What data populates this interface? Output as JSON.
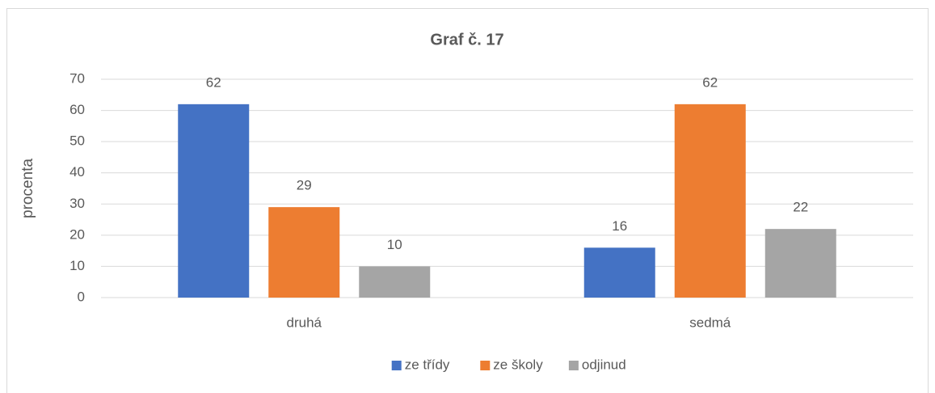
{
  "chart_data": {
    "type": "bar",
    "title": "Graf č. 17",
    "y_label": "procenta",
    "categories": [
      "druhá",
      "sedmá"
    ],
    "series": [
      {
        "name": "ze třídy",
        "color": "#4472c4",
        "values": [
          62,
          16
        ]
      },
      {
        "name": "ze školy",
        "color": "#ed7d31",
        "values": [
          29,
          62
        ]
      },
      {
        "name": "odjinud",
        "color": "#a5a5a5",
        "values": [
          10,
          22
        ]
      }
    ],
    "ylim": [
      0,
      70
    ],
    "yticks": [
      0,
      10,
      20,
      30,
      40,
      50,
      60,
      70
    ],
    "grid": true,
    "legend": "bottom"
  }
}
